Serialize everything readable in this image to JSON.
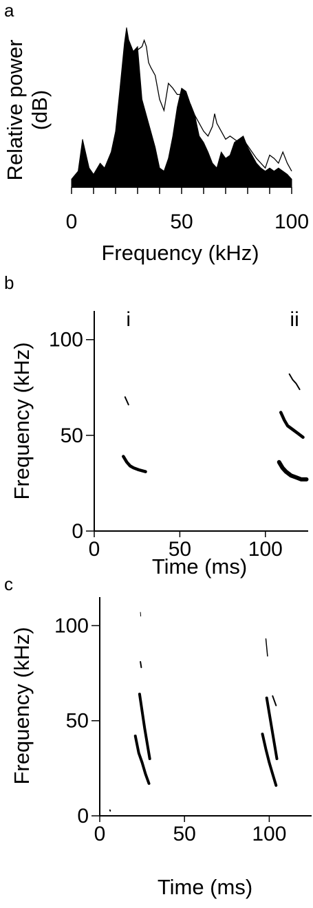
{
  "chart_data": [
    {
      "panel": "a",
      "type": "area",
      "xlabel": "Frequency (kHz)",
      "ylabel": [
        "Relative power",
        "(dB)"
      ],
      "xlim": [
        0,
        100
      ],
      "xticks": [
        0,
        50,
        100
      ],
      "y_scale_labels": false,
      "series": [
        {
          "style": "filled-black",
          "x": [
            0,
            3,
            5,
            8,
            10,
            13,
            15,
            18,
            20,
            22,
            24,
            25,
            26,
            28,
            30,
            32,
            34,
            36,
            38,
            40,
            42,
            44,
            46,
            48,
            50,
            52,
            54,
            56,
            58,
            60,
            62,
            64,
            66,
            68,
            70,
            72,
            74,
            76,
            78,
            80,
            82,
            84,
            86,
            88,
            90,
            92,
            94,
            96,
            98,
            100
          ],
          "y": [
            0.05,
            0.1,
            0.3,
            0.12,
            0.08,
            0.15,
            0.12,
            0.22,
            0.35,
            0.62,
            0.9,
            1.0,
            0.92,
            0.85,
            0.88,
            0.55,
            0.45,
            0.35,
            0.25,
            0.12,
            0.1,
            0.18,
            0.32,
            0.5,
            0.62,
            0.6,
            0.52,
            0.45,
            0.32,
            0.28,
            0.22,
            0.15,
            0.12,
            0.22,
            0.18,
            0.2,
            0.28,
            0.3,
            0.32,
            0.25,
            0.2,
            0.15,
            0.12,
            0.1,
            0.12,
            0.1,
            0.12,
            0.1,
            0.08,
            0.05
          ]
        },
        {
          "style": "outline",
          "x": [
            26,
            28,
            30,
            32,
            33,
            34,
            35,
            36,
            38,
            40,
            42,
            44,
            46,
            48,
            50,
            52,
            54,
            56,
            58,
            60,
            62,
            64,
            65,
            66,
            68,
            70,
            72,
            74,
            76,
            78,
            80,
            82,
            84,
            86,
            88,
            90,
            92,
            94,
            96,
            98,
            100
          ],
          "y": [
            0.92,
            0.85,
            0.86,
            0.88,
            0.92,
            0.88,
            0.78,
            0.75,
            0.7,
            0.55,
            0.48,
            0.65,
            0.62,
            0.58,
            0.58,
            0.55,
            0.52,
            0.45,
            0.4,
            0.35,
            0.32,
            0.38,
            0.46,
            0.4,
            0.35,
            0.3,
            0.32,
            0.3,
            0.28,
            0.3,
            0.26,
            0.22,
            0.18,
            0.15,
            0.12,
            0.2,
            0.18,
            0.15,
            0.22,
            0.15,
            0.1
          ]
        }
      ]
    },
    {
      "panel": "b",
      "type": "scatter",
      "xlabel": "Time (ms)",
      "ylabel": "Frequency (kHz)",
      "xlim": [
        0,
        125
      ],
      "ylim": [
        0,
        115
      ],
      "xticks": [
        0,
        50,
        100
      ],
      "yticks": [
        0,
        50,
        100
      ],
      "call_labels": [
        {
          "text": "i",
          "x": 20
        },
        {
          "text": "ii",
          "x": 117
        }
      ],
      "traces": [
        {
          "x": [
            17,
            19,
            21,
            23,
            26,
            30
          ],
          "y": [
            39,
            36,
            34,
            33,
            32,
            31
          ],
          "width": 4.5
        },
        {
          "x": [
            18,
            20
          ],
          "y": [
            70,
            66
          ],
          "width": 2
        },
        {
          "x": [
            108,
            110,
            112,
            115,
            118,
            121,
            124
          ],
          "y": [
            36,
            33,
            31,
            29,
            28,
            27,
            27
          ],
          "width": 6
        },
        {
          "x": [
            109,
            111,
            113,
            116,
            119,
            122
          ],
          "y": [
            62,
            58,
            55,
            53,
            51,
            49
          ],
          "width": 4.5
        },
        {
          "x": [
            114,
            116,
            118,
            120
          ],
          "y": [
            82,
            79,
            77,
            74
          ],
          "width": 2
        }
      ]
    },
    {
      "panel": "c",
      "type": "scatter",
      "xlabel": "Time (ms)",
      "ylabel": "Frequency (kHz)",
      "xlim": [
        0,
        125
      ],
      "ylim": [
        0,
        115
      ],
      "xticks": [
        0,
        50,
        100
      ],
      "yticks": [
        0,
        50,
        100
      ],
      "traces": [
        {
          "x": [
            21,
            23,
            25,
            27,
            29
          ],
          "y": [
            42,
            33,
            28,
            22,
            17
          ],
          "width": 4
        },
        {
          "x": [
            23.5,
            25,
            26.5,
            28,
            29.5
          ],
          "y": [
            64,
            55,
            46,
            38,
            30
          ],
          "width": 4
        },
        {
          "x": [
            24,
            24.5
          ],
          "y": [
            81,
            78
          ],
          "width": 2
        },
        {
          "x": [
            24,
            24.2
          ],
          "y": [
            107,
            105
          ],
          "width": 1
        },
        {
          "x": [
            96,
            98,
            100,
            102,
            104
          ],
          "y": [
            43,
            35,
            28,
            22,
            16
          ],
          "width": 4
        },
        {
          "x": [
            98.5,
            100,
            101.5,
            103,
            104.5
          ],
          "y": [
            62,
            54,
            46,
            38,
            30
          ],
          "width": 4
        },
        {
          "x": [
            98,
            99
          ],
          "y": [
            93,
            84
          ],
          "width": 1.5
        },
        {
          "x": [
            102,
            104
          ],
          "y": [
            63,
            58
          ],
          "width": 2
        },
        {
          "x": [
            6,
            6.2
          ],
          "y": [
            3,
            2.6
          ],
          "width": 2
        }
      ]
    }
  ]
}
